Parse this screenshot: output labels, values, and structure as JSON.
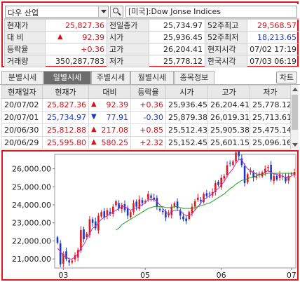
{
  "toolbar": {
    "market": "다우 산업",
    "index_name": "[미국]:Dow Jonse Indices"
  },
  "quote": {
    "rows": [
      [
        {
          "label": "현재가",
          "value": "25,827.36",
          "vcolor": "red"
        },
        {
          "label": "전일종가",
          "value": "25,734.97",
          "vcolor": ""
        },
        {
          "label": "52주최고",
          "value": "29,568.57",
          "vcolor": "red"
        }
      ],
      [
        {
          "label": "대 비",
          "value": "92.39",
          "vcolor": "red",
          "arrow": "▲"
        },
        {
          "label": "시가",
          "value": "25,936.45",
          "vcolor": ""
        },
        {
          "label": "52주최저",
          "value": "18,213.65",
          "vcolor": "blue"
        }
      ],
      [
        {
          "label": "등락율",
          "value": "+0.36",
          "vcolor": "red"
        },
        {
          "label": "고가",
          "value": "26,204.41",
          "vcolor": ""
        },
        {
          "label": "현지시각",
          "value": "07/02 17:19",
          "vcolor": ""
        }
      ],
      [
        {
          "label": "거래량",
          "value": "350,287,783",
          "vcolor": ""
        },
        {
          "label": "저가",
          "value": "25,778.12",
          "vcolor": ""
        },
        {
          "label": "한국시각",
          "value": "07/03 06:19",
          "vcolor": ""
        }
      ]
    ]
  },
  "tabs": [
    "분별시세",
    "일별시세",
    "주별시세",
    "월별시세",
    "종목정보"
  ],
  "chart_button": "차트",
  "daily": {
    "headers": [
      "현재일자",
      "현재가",
      "대비",
      "등락율",
      "시가",
      "고가",
      "저가"
    ],
    "rows": [
      {
        "date": "20/07/02",
        "close": "25,827.36",
        "arrow": "▲",
        "change": "92.39",
        "rate": "+0.36",
        "open": "25,936.45",
        "high": "26,204.41",
        "low": "25,778.12",
        "color": "red"
      },
      {
        "date": "20/07/01",
        "close": "25,734.97",
        "arrow": "▼",
        "change": "77.91",
        "rate": "-0.30",
        "open": "25,879.38",
        "high": "26,019.31",
        "low": "25,713.61",
        "color": "blue"
      },
      {
        "date": "20/06/30",
        "close": "25,812.88",
        "arrow": "▲",
        "change": "217.08",
        "rate": "+0.85",
        "open": "25,512.43",
        "high": "25,905.38",
        "low": "25,475.14",
        "color": "red"
      },
      {
        "date": "20/06/29",
        "close": "25,595.80",
        "arrow": "▲",
        "change": "580.25",
        "rate": "+2.32",
        "open": "25,152.45",
        "high": "25,601.15",
        "low": "25,096.16",
        "color": "red"
      }
    ]
  },
  "colors": {
    "up": "#e0171f",
    "down": "#1a37c8",
    "ma_short": "#c030c0",
    "ma_long": "#20a020"
  },
  "chart_data": {
    "type": "candlestick",
    "y_ticks": [
      "26,000.00",
      "25,000.00",
      "24,000.00",
      "23,000.00",
      "22,000.00",
      "21,000.00"
    ],
    "x_ticks": [
      "03",
      "05",
      "06",
      "07"
    ],
    "ylim": [
      20500,
      26800
    ],
    "num_bars": 82,
    "x_tick_index": [
      2,
      30,
      56,
      80
    ],
    "closes": [
      21900,
      20700,
      21300,
      21000,
      20800,
      20900,
      21200,
      21500,
      22600,
      22100,
      22400,
      23200,
      23000,
      22700,
      23400,
      23600,
      23300,
      23700,
      23500,
      23900,
      24200,
      23800,
      24000,
      23700,
      23400,
      23600,
      24100,
      23900,
      24300,
      24100,
      24200,
      24600,
      24400,
      24300,
      23900,
      23700,
      23600,
      23300,
      23500,
      23900,
      24100,
      23800,
      23400,
      23200,
      23100,
      23600,
      23900,
      24200,
      24400,
      24200,
      24600,
      24500,
      24600,
      24700,
      25200,
      25100,
      25500,
      25600,
      26200,
      26300,
      26400,
      26900,
      26700,
      26200,
      25200,
      25700,
      25900,
      25500,
      25600,
      25700,
      25800,
      26000,
      26100,
      25400,
      25600,
      25400,
      25700,
      25600,
      25300,
      25600,
      25734,
      25827
    ],
    "series": [
      {
        "name": "ma_short",
        "values": [
          21600,
          21400,
          21200,
          21100,
          21000,
          21000,
          21100,
          21300,
          21600,
          21800,
          22100,
          22400,
          22700,
          22800,
          23000,
          23200,
          23300,
          23400,
          23500,
          23600,
          23700,
          23800,
          23900,
          23900,
          23800,
          23700,
          23800,
          23800,
          23900,
          24000,
          24100,
          24300,
          24300,
          24300,
          24200,
          24000,
          23800,
          23600,
          23500,
          23600,
          23700,
          23700,
          23700,
          23500,
          23400,
          23400,
          23500,
          23700,
          23900,
          24100,
          24300,
          24400,
          24500,
          24600,
          24800,
          24900,
          25100,
          25300,
          25600,
          25800,
          26000,
          26300,
          26500,
          26500,
          26200,
          26000,
          25900,
          25800,
          25700,
          25700,
          25700,
          25800,
          25900,
          25800,
          25700,
          25700,
          25600,
          25600,
          25500,
          25500,
          25600,
          25700
        ]
      },
      {
        "name": "ma_long",
        "values": [
          null,
          null,
          null,
          null,
          null,
          null,
          null,
          null,
          null,
          null,
          null,
          null,
          null,
          null,
          null,
          null,
          null,
          null,
          null,
          null,
          22600,
          22700,
          22900,
          23000,
          23100,
          23200,
          23300,
          23400,
          23500,
          23600,
          23700,
          23800,
          23850,
          23900,
          23900,
          23900,
          23900,
          23850,
          23850,
          23850,
          23900,
          23900,
          23850,
          23800,
          23800,
          23800,
          23800,
          23850,
          23900,
          23950,
          24000,
          24050,
          24100,
          24200,
          24300,
          24400,
          24500,
          24600,
          24750,
          24900,
          25000,
          25150,
          25250,
          25350,
          25400,
          25450,
          25500,
          25550,
          25600,
          25650,
          25700,
          25700,
          25750,
          25750,
          25750,
          25750,
          25750,
          25750,
          25750,
          25750,
          25750,
          25750
        ]
      }
    ]
  }
}
